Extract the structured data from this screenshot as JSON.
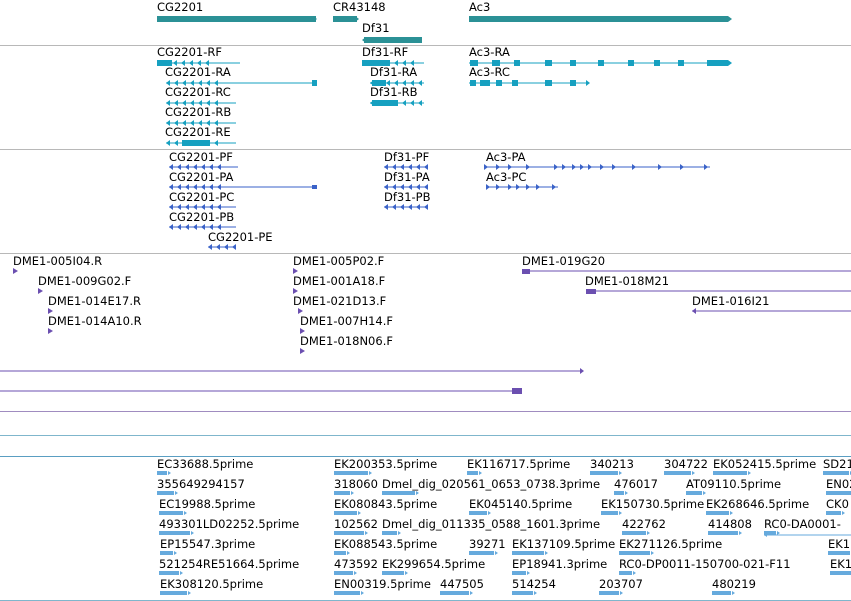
{
  "colors": {
    "gene": "#2b9196",
    "transcript": "#16a0c0",
    "protein": "#3a62c8",
    "clone": "#6b4fb0",
    "est": "#66aadd"
  },
  "genes": [
    {
      "name": "CG2201"
    },
    {
      "name": "CR43148"
    },
    {
      "name": "Df31"
    },
    {
      "name": "Ac3"
    }
  ],
  "transcripts": [
    {
      "name": "CG2201-RF"
    },
    {
      "name": "CG2201-RA"
    },
    {
      "name": "CG2201-RC"
    },
    {
      "name": "CG2201-RB"
    },
    {
      "name": "CG2201-RE"
    },
    {
      "name": "Df31-RF"
    },
    {
      "name": "Df31-RA"
    },
    {
      "name": "Df31-RB"
    },
    {
      "name": "Ac3-RA"
    },
    {
      "name": "Ac3-RC"
    }
  ],
  "proteins": [
    {
      "name": "CG2201-PF"
    },
    {
      "name": "CG2201-PA"
    },
    {
      "name": "CG2201-PC"
    },
    {
      "name": "CG2201-PB"
    },
    {
      "name": "CG2201-PE"
    },
    {
      "name": "Df31-PF"
    },
    {
      "name": "Df31-PA"
    },
    {
      "name": "Df31-PB"
    },
    {
      "name": "Ac3-PA"
    },
    {
      "name": "Ac3-PC"
    }
  ],
  "clones": [
    {
      "name": "DME1-005I04.R"
    },
    {
      "name": "DME1-009G02.F"
    },
    {
      "name": "DME1-014E17.R"
    },
    {
      "name": "DME1-014A10.R"
    },
    {
      "name": "DME1-005P02.F"
    },
    {
      "name": "DME1-001A18.F"
    },
    {
      "name": "DME1-021D13.F"
    },
    {
      "name": "DME1-007H14.F"
    },
    {
      "name": "DME1-018N06.F"
    },
    {
      "name": "DME1-019G20"
    },
    {
      "name": "DME1-018M21"
    },
    {
      "name": "DME1-016I21"
    }
  ],
  "ests": [
    {
      "name": "EC33688.5prime"
    },
    {
      "name": "355649294157"
    },
    {
      "name": "EC19988.5prime"
    },
    {
      "name": "493301LD02252.5prime"
    },
    {
      "name": "EP15547.3prime"
    },
    {
      "name": "521254RE51664.5prime"
    },
    {
      "name": "EK308120.5prime"
    },
    {
      "name": "EK200353.5prime"
    },
    {
      "name": "318060"
    },
    {
      "name": "EK080843.5prime"
    },
    {
      "name": "102562"
    },
    {
      "name": "EK088543.5prime"
    },
    {
      "name": "473592"
    },
    {
      "name": "EN00319.5prime"
    },
    {
      "name": "Dmel_dig_020561_0653_0738.3prime"
    },
    {
      "name": "Dmel_dig_011335_0588_1601.3prime"
    },
    {
      "name": "EK299654.5prime"
    },
    {
      "name": "447505"
    },
    {
      "name": "EK116717.5prime"
    },
    {
      "name": "EK045140.5prime"
    },
    {
      "name": "39271"
    },
    {
      "name": "EK137109.5prime"
    },
    {
      "name": "EP18941.3prime"
    },
    {
      "name": "514254"
    },
    {
      "name": "340213"
    },
    {
      "name": "476017"
    },
    {
      "name": "EK150730.5prime"
    },
    {
      "name": "422762"
    },
    {
      "name": "EK271126.5prime"
    },
    {
      "name": "RC0-DP0011-150700-021-F11"
    },
    {
      "name": "203707"
    },
    {
      "name": "304722"
    },
    {
      "name": "EK052415.5prime"
    },
    {
      "name": "AT09110.5prime"
    },
    {
      "name": "EK268646.5prime"
    },
    {
      "name": "414808"
    },
    {
      "name": "RC0-DA0001-"
    },
    {
      "name": "480219"
    },
    {
      "name": "SD21"
    },
    {
      "name": "EN02"
    },
    {
      "name": "CK0"
    },
    {
      "name": "EK1"
    },
    {
      "name": "EK1"
    }
  ]
}
